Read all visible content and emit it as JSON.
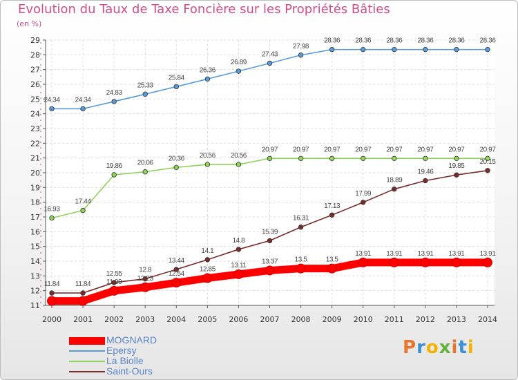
{
  "title": "Evolution du Taux de Taxe Foncière sur les Propriétés Bâties",
  "unit_label": "(en %)",
  "logo_text": "Proxiti",
  "colors": {
    "title": "#d14d8d",
    "logo": [
      "#e8762c",
      "#3a8fd6",
      "#f2b400",
      "#66b23b"
    ]
  },
  "chart_data": {
    "type": "line",
    "title": "Evolution du Taux de Taxe Foncière sur les Propriétés Bâties",
    "ylabel": "(en %)",
    "xlabel": "",
    "x": [
      "2000",
      "2001",
      "2002",
      "2003",
      "2004",
      "2005",
      "2006",
      "2007",
      "2008",
      "2009",
      "2010",
      "2011",
      "2012",
      "2013",
      "2014"
    ],
    "ylim": [
      11,
      29
    ],
    "yticks": [
      11,
      12,
      13,
      14,
      15,
      16,
      17,
      18,
      19,
      20,
      21,
      22,
      23,
      24,
      25,
      26,
      27,
      28,
      29
    ],
    "grid": true,
    "legend": "bottom-left",
    "series": [
      {
        "name": "MOGNARD",
        "color": "#ff0000",
        "values": [
          11.3,
          11.3,
          11.99,
          12.23,
          12.54,
          12.85,
          13.11,
          13.37,
          13.5,
          13.5,
          13.91,
          13.91,
          13.91,
          13.91,
          13.91
        ],
        "labels": [
          "",
          "",
          "11.99",
          "12.23",
          "12.54",
          "12.85",
          "13.11",
          "13.37",
          "13.5",
          "13.5",
          "13.91",
          "13.91",
          "13.91",
          "13.91",
          "13.91"
        ]
      },
      {
        "name": "Epersy",
        "color": "#5b9bd5",
        "values": [
          24.34,
          24.34,
          24.83,
          25.33,
          25.84,
          26.36,
          26.89,
          27.43,
          27.98,
          28.36,
          28.36,
          28.36,
          28.36,
          28.36,
          28.36
        ],
        "labels": [
          "24.34",
          "24.34",
          "24.83",
          "25.33",
          "25.84",
          "26.36",
          "26.89",
          "27.43",
          "27.98",
          "28.36",
          "28.36",
          "28.36",
          "28.36",
          "28.36",
          "28.36"
        ]
      },
      {
        "name": "La Biolle",
        "color": "#8fd35a",
        "values": [
          16.93,
          17.44,
          19.86,
          20.06,
          20.36,
          20.56,
          20.56,
          20.97,
          20.97,
          20.97,
          20.97,
          20.97,
          20.97,
          20.97,
          20.97
        ],
        "labels": [
          "16.93",
          "17.44",
          "19.86",
          "20.06",
          "20.36",
          "20.56",
          "20.56",
          "20.97",
          "20.97",
          "20.97",
          "20.97",
          "20.97",
          "20.97",
          "20.97",
          "20.97"
        ]
      },
      {
        "name": "Saint-Ours",
        "color": "#7a2c2c",
        "values": [
          11.84,
          11.84,
          12.55,
          12.8,
          13.44,
          14.1,
          14.8,
          15.39,
          16.31,
          17.13,
          17.99,
          18.89,
          19.46,
          19.85,
          20.15
        ],
        "labels": [
          "11.84",
          "11.84",
          "12.55",
          "12.8",
          "13.44",
          "14.1",
          "14.8",
          "15.39",
          "16.31",
          "17.13",
          "17.99",
          "18.89",
          "19.46",
          "19.85",
          "20.15"
        ]
      }
    ]
  }
}
